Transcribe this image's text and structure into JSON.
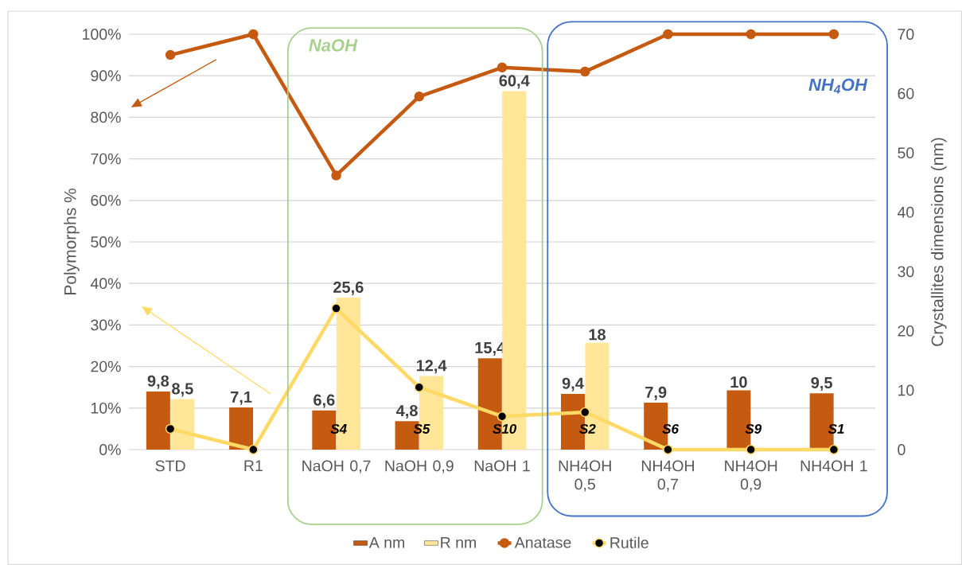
{
  "chart_data": {
    "type": "bar",
    "ylabel": "Polymorphs %",
    "y2label": "Crystallites dimensions (nm)",
    "categories": [
      "STD",
      "R1",
      "NaOH 0,7",
      "NaOH 0,9",
      "NaOH 1",
      "NH4OH 0,5",
      "NH4OH 0,7",
      "NH4OH 0,9",
      "NH4OH 1"
    ],
    "series": [
      {
        "name": "A nm",
        "axis": "y2",
        "color": "#c55a11",
        "values": [
          9.8,
          7.1,
          6.6,
          4.8,
          15.4,
          9.4,
          7.9,
          10,
          9.5
        ],
        "value_labels": [
          "9,8",
          "7,1",
          "6,6",
          "4,8",
          "15,4",
          "9,4",
          "7,9",
          "10",
          "9,5"
        ]
      },
      {
        "name": "R nm",
        "axis": "y2",
        "color": "#ffe699",
        "values": [
          8.5,
          null,
          25.6,
          12.4,
          60.4,
          18,
          null,
          null,
          null
        ],
        "value_labels": [
          "8,5",
          null,
          "25,6",
          "12,4",
          "60,4",
          "18",
          null,
          null,
          null
        ]
      },
      {
        "name": "Anatase",
        "type": "line",
        "color": "#c55a11",
        "values": [
          95,
          100,
          66,
          85,
          92,
          91,
          100,
          100,
          100
        ]
      },
      {
        "name": "Rutile",
        "type": "line",
        "color": "#ffd966",
        "values": [
          5,
          0,
          34,
          15,
          8,
          9,
          0,
          0,
          0
        ]
      }
    ],
    "ylim": [
      0,
      100
    ],
    "yticks": [
      {
        "value": 0,
        "label": "0%"
      },
      {
        "value": 10,
        "label": "10%"
      },
      {
        "value": 20,
        "label": "20%"
      },
      {
        "value": 30,
        "label": "30%"
      },
      {
        "value": 40,
        "label": "40%"
      },
      {
        "value": 50,
        "label": "50%"
      },
      {
        "value": 60,
        "label": "60%"
      },
      {
        "value": 70,
        "label": "70%"
      },
      {
        "value": 80,
        "label": "80%"
      },
      {
        "value": 90,
        "label": "90%"
      },
      {
        "value": 100,
        "label": "100%"
      }
    ],
    "y2lim": [
      0,
      70
    ],
    "y2ticks": [
      0,
      10,
      20,
      30,
      40,
      50,
      60,
      70
    ],
    "annotations": [
      "NaOH",
      "NH$_{4}$OH",
      {
        "text": "S4",
        "x": "NaOH 0,7"
      },
      {
        "text": "S5",
        "x": "NaOH 0,9"
      },
      {
        "text": "S10",
        "x": "NaOH 1"
      },
      {
        "text": "S2",
        "x": "NH4OH 0,5"
      },
      {
        "text": "S6",
        "x": "NH4OH 0,7"
      },
      {
        "text": "S9",
        "x": "NH4OH 0,9"
      },
      {
        "text": "S1",
        "x": "NH4OH 1"
      }
    ],
    "marker": "circle",
    "grid": "y",
    "legend": "bottom"
  }
}
